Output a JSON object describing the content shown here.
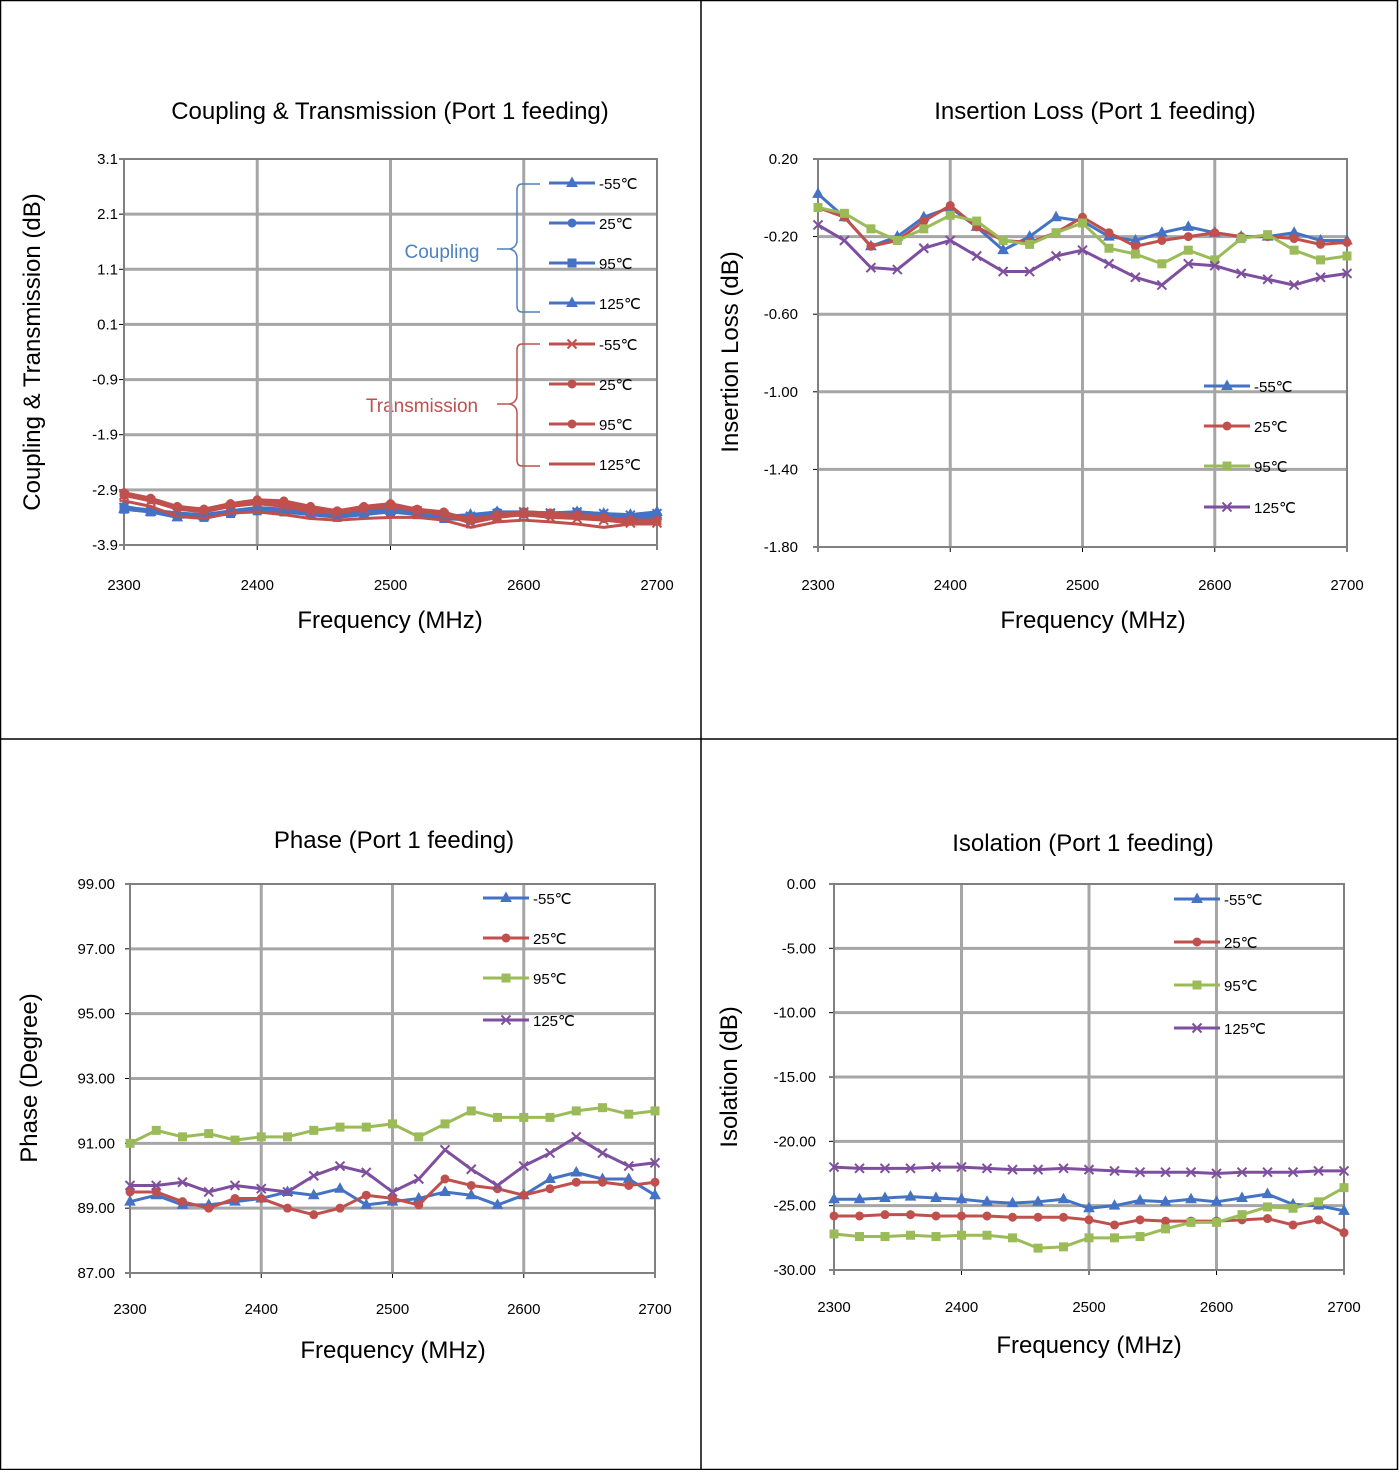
{
  "colors": {
    "blue": "#4472C4",
    "red": "#C0504D",
    "green": "#9BBB59",
    "purple": "#7F4F9F",
    "gridline": "#a6a6a6",
    "coupling_label": "#4F81BD",
    "transmission_label": "#C0504D"
  },
  "markers": {
    "-55": "triangle",
    "25": "circle",
    "95": "square",
    "125": "x"
  },
  "chart_data": [
    {
      "id": "coupling",
      "type": "line",
      "title": "Coupling & Transmission (Port 1 feeding)",
      "xlabel": "Frequency (MHz)",
      "ylabel": "Coupling & Transmission (dB)",
      "xlim": [
        2300,
        2700
      ],
      "ylim": [
        -3.9,
        3.1
      ],
      "xticks": [
        "2300",
        "2400",
        "2500",
        "2600",
        "2700"
      ],
      "yticks": [
        "3.1",
        "2.1",
        "1.1",
        "0.1",
        "-0.9",
        "-1.9",
        "-2.9",
        "-3.9"
      ],
      "grid": true,
      "legend_position": "right, grouped by bracket",
      "group_labels": {
        "coupling": "Coupling",
        "transmission": "Transmission"
      },
      "legend": [
        {
          "name": "-55℃",
          "group": "coupling"
        },
        {
          "name": "25℃",
          "group": "coupling"
        },
        {
          "name": "95℃",
          "group": "coupling"
        },
        {
          "name": "125℃",
          "group": "coupling"
        },
        {
          "name": "-55℃",
          "group": "transmission"
        },
        {
          "name": "25℃",
          "group": "transmission"
        },
        {
          "name": "95℃",
          "group": "transmission"
        },
        {
          "name": "125℃",
          "group": "transmission"
        }
      ],
      "x": [
        2300,
        2320,
        2340,
        2360,
        2380,
        2400,
        2420,
        2440,
        2460,
        2480,
        2500,
        2520,
        2540,
        2560,
        2580,
        2600,
        2620,
        2640,
        2660,
        2680,
        2700
      ],
      "series": [
        {
          "name": "-55℃",
          "color": "blue",
          "marker": "triangle",
          "values": [
            -3.25,
            -3.3,
            -3.4,
            -3.38,
            -3.3,
            -3.25,
            -3.28,
            -3.35,
            -3.38,
            -3.3,
            -3.28,
            -3.32,
            -3.38,
            -3.35,
            -3.3,
            -3.32,
            -3.35,
            -3.3,
            -3.33,
            -3.35,
            -3.3
          ]
        },
        {
          "name": "25℃",
          "color": "blue",
          "marker": "circle",
          "values": [
            -3.2,
            -3.28,
            -3.35,
            -3.35,
            -3.28,
            -3.22,
            -3.25,
            -3.3,
            -3.35,
            -3.28,
            -3.25,
            -3.3,
            -3.35,
            -3.38,
            -3.3,
            -3.3,
            -3.32,
            -3.3,
            -3.35,
            -3.38,
            -3.35
          ]
        },
        {
          "name": "95℃",
          "color": "blue",
          "marker": "square",
          "values": [
            -3.25,
            -3.3,
            -3.38,
            -3.4,
            -3.33,
            -3.28,
            -3.3,
            -3.35,
            -3.4,
            -3.35,
            -3.3,
            -3.35,
            -3.42,
            -3.45,
            -3.38,
            -3.33,
            -3.35,
            -3.32,
            -3.38,
            -3.42,
            -3.4
          ]
        },
        {
          "name": "125℃",
          "color": "blue",
          "marker": "x",
          "values": [
            -3.22,
            -3.26,
            -3.32,
            -3.35,
            -3.3,
            -3.24,
            -3.27,
            -3.32,
            -3.36,
            -3.31,
            -3.27,
            -3.31,
            -3.36,
            -3.38,
            -3.33,
            -3.3,
            -3.32,
            -3.3,
            -3.33,
            -3.36,
            -3.33
          ]
        },
        {
          "name": "-55℃",
          "color": "red",
          "marker": "x",
          "values": [
            -3.0,
            -3.1,
            -3.25,
            -3.3,
            -3.2,
            -3.15,
            -3.2,
            -3.3,
            -3.32,
            -3.25,
            -3.2,
            -3.28,
            -3.35,
            -3.5,
            -3.4,
            -3.35,
            -3.4,
            -3.42,
            -3.45,
            -3.5,
            -3.5
          ]
        },
        {
          "name": "25℃",
          "color": "red",
          "marker": "circle",
          "values": [
            -2.95,
            -3.05,
            -3.2,
            -3.25,
            -3.15,
            -3.08,
            -3.1,
            -3.2,
            -3.28,
            -3.2,
            -3.15,
            -3.25,
            -3.3,
            -3.45,
            -3.35,
            -3.3,
            -3.32,
            -3.35,
            -3.4,
            -3.45,
            -3.45
          ]
        },
        {
          "name": "95℃",
          "color": "red",
          "marker": "circle",
          "values": [
            -3.0,
            -3.08,
            -3.22,
            -3.25,
            -3.15,
            -3.1,
            -3.15,
            -3.25,
            -3.3,
            -3.22,
            -3.18,
            -3.27,
            -3.32,
            -3.42,
            -3.38,
            -3.32,
            -3.35,
            -3.38,
            -3.42,
            -3.47,
            -3.47
          ]
        },
        {
          "name": "125℃",
          "color": "red",
          "marker": "dash",
          "values": [
            -3.1,
            -3.2,
            -3.38,
            -3.42,
            -3.32,
            -3.3,
            -3.35,
            -3.42,
            -3.45,
            -3.42,
            -3.4,
            -3.4,
            -3.45,
            -3.58,
            -3.48,
            -3.45,
            -3.48,
            -3.52,
            -3.58,
            -3.52,
            -3.52
          ]
        }
      ]
    },
    {
      "id": "insertion",
      "type": "line",
      "title": "Insertion Loss (Port 1 feeding)",
      "xlabel": "Frequency (MHz)",
      "ylabel": "Insertion Loss (dB)",
      "xlim": [
        2300,
        2700
      ],
      "ylim": [
        -1.8,
        0.2
      ],
      "xticks": [
        "2300",
        "2400",
        "2500",
        "2600",
        "2700"
      ],
      "yticks": [
        "0.20",
        "-0.20",
        "-0.60",
        "-1.00",
        "-1.40",
        "-1.80"
      ],
      "grid": true,
      "legend_position": "lower-right",
      "x": [
        2300,
        2320,
        2340,
        2360,
        2380,
        2400,
        2420,
        2440,
        2460,
        2480,
        2500,
        2520,
        2540,
        2560,
        2580,
        2600,
        2620,
        2640,
        2660,
        2680,
        2700
      ],
      "series": [
        {
          "name": "-55℃",
          "color": "blue",
          "marker": "triangle",
          "values": [
            0.02,
            -0.1,
            -0.25,
            -0.2,
            -0.1,
            -0.05,
            -0.15,
            -0.27,
            -0.2,
            -0.1,
            -0.12,
            -0.2,
            -0.22,
            -0.18,
            -0.15,
            -0.18,
            -0.2,
            -0.2,
            -0.18,
            -0.22,
            -0.22
          ]
        },
        {
          "name": "25℃",
          "color": "red",
          "marker": "circle",
          "values": [
            -0.05,
            -0.1,
            -0.25,
            -0.22,
            -0.12,
            -0.04,
            -0.15,
            -0.22,
            -0.23,
            -0.18,
            -0.1,
            -0.18,
            -0.25,
            -0.22,
            -0.2,
            -0.18,
            -0.2,
            -0.2,
            -0.21,
            -0.24,
            -0.23
          ]
        },
        {
          "name": "95℃",
          "color": "green",
          "marker": "square",
          "values": [
            -0.05,
            -0.08,
            -0.16,
            -0.22,
            -0.16,
            -0.09,
            -0.12,
            -0.22,
            -0.24,
            -0.18,
            -0.13,
            -0.26,
            -0.29,
            -0.34,
            -0.27,
            -0.32,
            -0.21,
            -0.19,
            -0.27,
            -0.32,
            -0.3
          ]
        },
        {
          "name": "125℃",
          "color": "purple",
          "marker": "x",
          "values": [
            -0.14,
            -0.22,
            -0.36,
            -0.37,
            -0.26,
            -0.22,
            -0.3,
            -0.38,
            -0.38,
            -0.3,
            -0.27,
            -0.34,
            -0.41,
            -0.45,
            -0.34,
            -0.35,
            -0.39,
            -0.42,
            -0.45,
            -0.41,
            -0.39
          ]
        }
      ]
    },
    {
      "id": "phase",
      "type": "line",
      "title": "Phase (Port 1 feeding)",
      "xlabel": "Frequency (MHz)",
      "ylabel": "Phase (Degree)",
      "xlim": [
        2300,
        2700
      ],
      "ylim": [
        87,
        99
      ],
      "xticks": [
        "2300",
        "2400",
        "2500",
        "2600",
        "2700"
      ],
      "yticks": [
        "99.00",
        "97.00",
        "95.00",
        "93.00",
        "91.00",
        "89.00",
        "87.00"
      ],
      "grid": true,
      "legend_position": "upper-right",
      "x": [
        2300,
        2320,
        2340,
        2360,
        2380,
        2400,
        2420,
        2440,
        2460,
        2480,
        2500,
        2520,
        2540,
        2560,
        2580,
        2600,
        2620,
        2640,
        2660,
        2680,
        2700
      ],
      "series": [
        {
          "name": "-55℃",
          "color": "blue",
          "marker": "triangle",
          "values": [
            89.2,
            89.4,
            89.1,
            89.1,
            89.2,
            89.3,
            89.5,
            89.4,
            89.6,
            89.1,
            89.2,
            89.3,
            89.5,
            89.4,
            89.1,
            89.4,
            89.9,
            90.1,
            89.9,
            89.9,
            89.4
          ]
        },
        {
          "name": "25℃",
          "color": "red",
          "marker": "circle",
          "values": [
            89.5,
            89.5,
            89.2,
            89.0,
            89.3,
            89.3,
            89.0,
            88.8,
            89.0,
            89.4,
            89.3,
            89.1,
            89.9,
            89.7,
            89.6,
            89.4,
            89.6,
            89.8,
            89.8,
            89.7,
            89.8
          ]
        },
        {
          "name": "95℃",
          "color": "green",
          "marker": "square",
          "values": [
            91.0,
            91.4,
            91.2,
            91.3,
            91.1,
            91.2,
            91.2,
            91.4,
            91.5,
            91.5,
            91.6,
            91.2,
            91.6,
            92.0,
            91.8,
            91.8,
            91.8,
            92.0,
            92.1,
            91.9,
            92.0
          ]
        },
        {
          "name": "125℃",
          "color": "purple",
          "marker": "x",
          "values": [
            89.7,
            89.7,
            89.8,
            89.5,
            89.7,
            89.6,
            89.5,
            90.0,
            90.3,
            90.1,
            89.5,
            89.9,
            90.8,
            90.2,
            89.7,
            90.3,
            90.7,
            91.2,
            90.7,
            90.3,
            90.4
          ]
        }
      ]
    },
    {
      "id": "isolation",
      "type": "line",
      "title": "Isolation (Port 1 feeding)",
      "xlabel": "Frequency (MHz)",
      "ylabel": "Isolation (dB)",
      "xlim": [
        2300,
        2700
      ],
      "ylim": [
        -30,
        0
      ],
      "xticks": [
        "2300",
        "2400",
        "2500",
        "2600",
        "2700"
      ],
      "yticks": [
        "0.00",
        "-5.00",
        "-10.00",
        "-15.00",
        "-20.00",
        "-25.00",
        "-30.00"
      ],
      "grid": true,
      "legend_position": "upper-right",
      "x": [
        2300,
        2320,
        2340,
        2360,
        2380,
        2400,
        2420,
        2440,
        2460,
        2480,
        2500,
        2520,
        2540,
        2560,
        2580,
        2600,
        2620,
        2640,
        2660,
        2680,
        2700
      ],
      "series": [
        {
          "name": "-55℃",
          "color": "blue",
          "marker": "triangle",
          "values": [
            -24.5,
            -24.5,
            -24.4,
            -24.3,
            -24.4,
            -24.5,
            -24.7,
            -24.8,
            -24.7,
            -24.5,
            -25.2,
            -25.0,
            -24.6,
            -24.7,
            -24.5,
            -24.7,
            -24.4,
            -24.1,
            -24.9,
            -25.0,
            -25.4
          ]
        },
        {
          "name": "25℃",
          "color": "red",
          "marker": "circle",
          "values": [
            -25.8,
            -25.8,
            -25.7,
            -25.7,
            -25.8,
            -25.8,
            -25.8,
            -25.9,
            -25.9,
            -25.9,
            -26.1,
            -26.5,
            -26.1,
            -26.2,
            -26.2,
            -26.2,
            -26.1,
            -26.0,
            -26.5,
            -26.1,
            -27.1
          ]
        },
        {
          "name": "95℃",
          "color": "green",
          "marker": "square",
          "values": [
            -27.2,
            -27.4,
            -27.4,
            -27.3,
            -27.4,
            -27.3,
            -27.3,
            -27.5,
            -28.3,
            -28.2,
            -27.5,
            -27.5,
            -27.4,
            -26.8,
            -26.3,
            -26.3,
            -25.7,
            -25.1,
            -25.2,
            -24.7,
            -23.6
          ]
        },
        {
          "name": "125℃",
          "color": "purple",
          "marker": "x",
          "values": [
            -22.0,
            -22.1,
            -22.1,
            -22.1,
            -22.0,
            -22.0,
            -22.1,
            -22.2,
            -22.2,
            -22.1,
            -22.2,
            -22.3,
            -22.4,
            -22.4,
            -22.4,
            -22.5,
            -22.4,
            -22.4,
            -22.4,
            -22.3,
            -22.3
          ]
        }
      ]
    }
  ]
}
